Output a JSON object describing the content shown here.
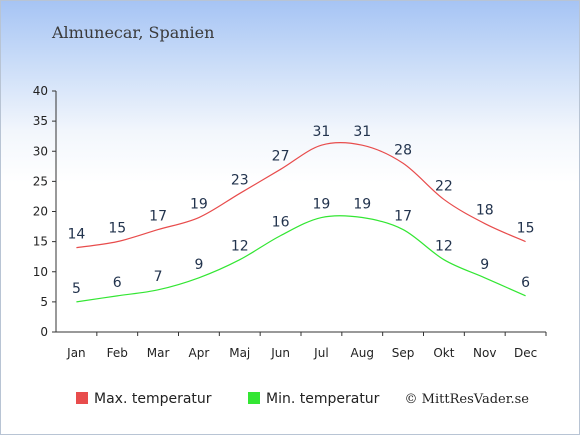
{
  "chart_data": {
    "type": "line",
    "title": "Almunecar, Spanien",
    "categories": [
      "Jan",
      "Feb",
      "Mar",
      "Apr",
      "Maj",
      "Jun",
      "Jul",
      "Aug",
      "Sep",
      "Okt",
      "Nov",
      "Dec"
    ],
    "series": [
      {
        "name": "Max. temperatur",
        "color": "#e84c4c",
        "values": [
          14,
          15,
          17,
          19,
          23,
          27,
          31,
          31,
          28,
          22,
          18,
          15
        ]
      },
      {
        "name": "Min. temperatur",
        "color": "#33e633",
        "values": [
          5,
          6,
          7,
          9,
          12,
          16,
          19,
          19,
          17,
          12,
          9,
          6
        ]
      }
    ],
    "ylim": [
      0,
      40
    ],
    "yticks": [
      0,
      5,
      10,
      15,
      20,
      25,
      30,
      35,
      40
    ],
    "grid": false,
    "legend_position": "bottom-left"
  },
  "credit": "© MittResVader.se"
}
